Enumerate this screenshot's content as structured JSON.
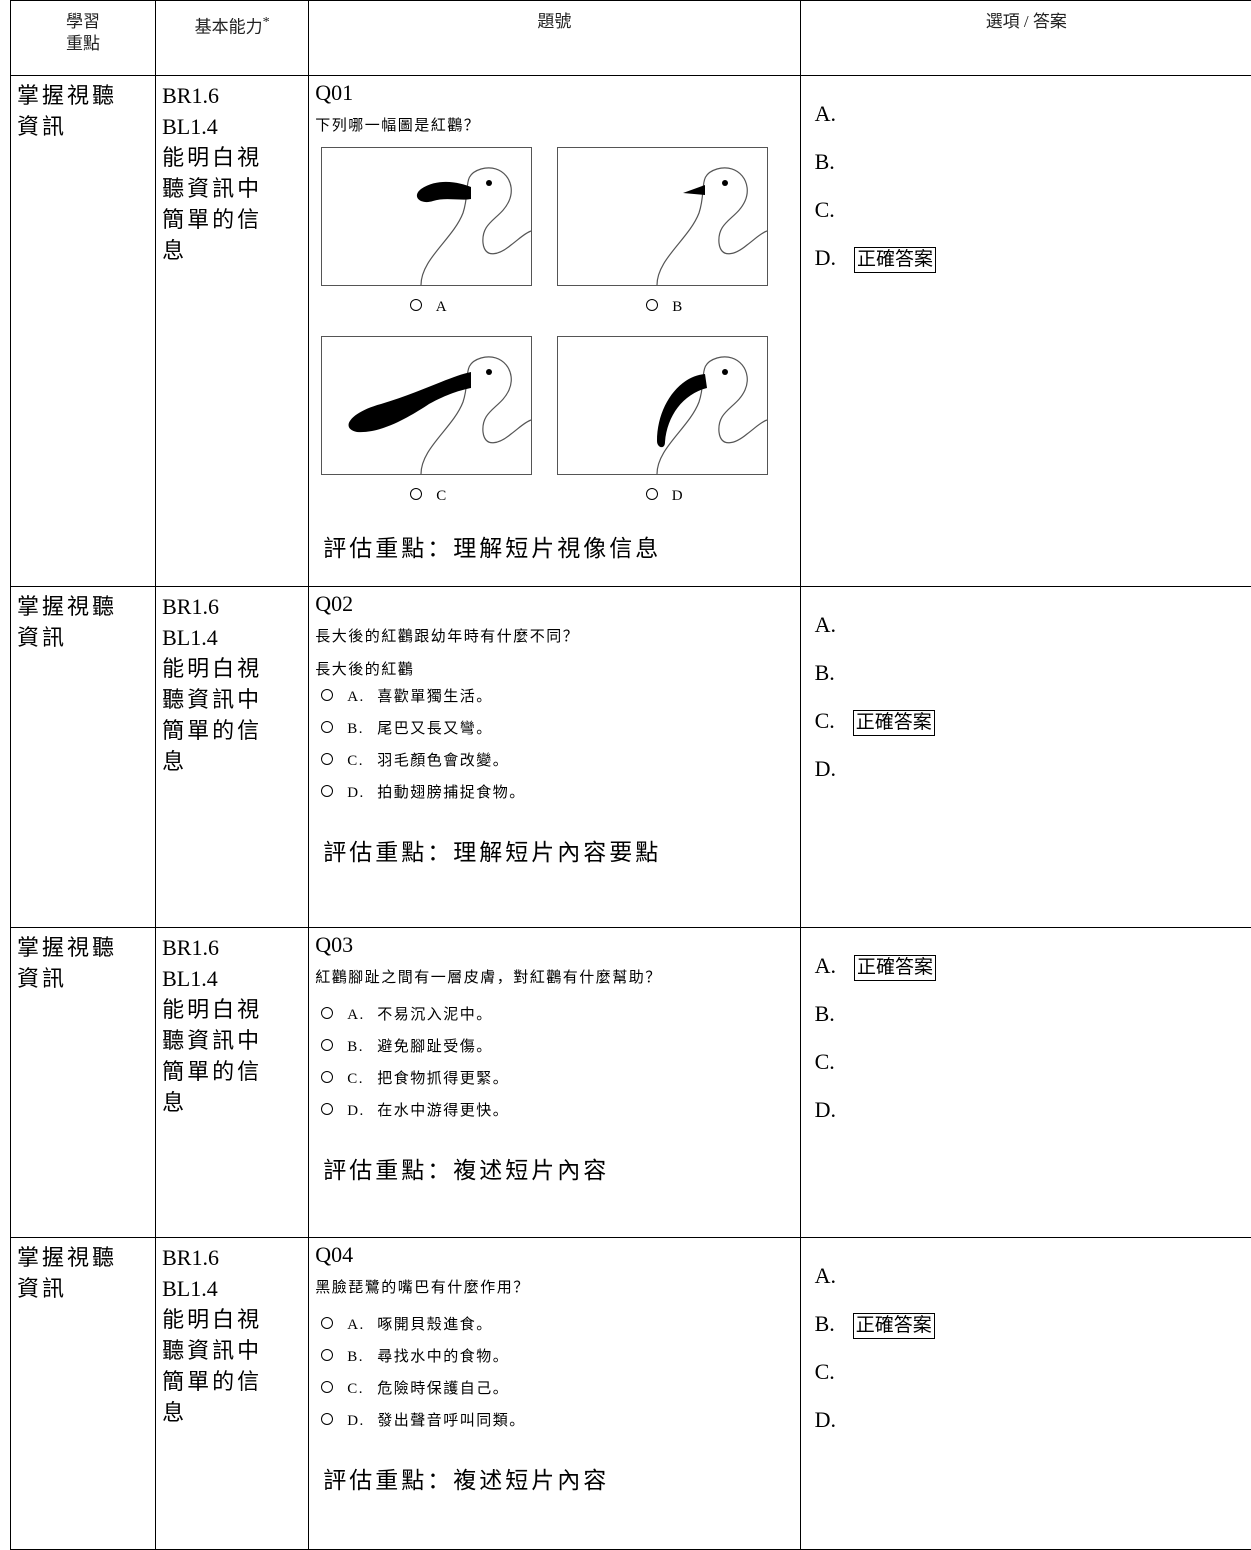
{
  "table": {
    "header": {
      "focus": [
        "學習",
        "重點"
      ],
      "ability": "基本能力",
      "ability_mark": "*",
      "question": "題號",
      "answer": "選項 / 答案"
    },
    "rows": [
      {
        "focus": [
          "掌握視聽",
          "資訊"
        ],
        "codes": [
          "BR1.6",
          "BL1.4"
        ],
        "ability": [
          "能明白視",
          "聽資訊中",
          "簡單的信",
          "息"
        ],
        "qid": "Q01",
        "stem": "下列哪一幅圖是紅鸛？",
        "image_options": [
          "A",
          "B",
          "C",
          "D"
        ],
        "focus_note": "評估重點：理解短片視像信息",
        "choices": [
          "A.",
          "B.",
          "C.",
          "D."
        ],
        "correct": {
          "index": 3,
          "label": "正確答案"
        }
      },
      {
        "focus": [
          "掌握視聽",
          "資訊"
        ],
        "codes": [
          "BR1.6",
          "BL1.4"
        ],
        "ability": [
          "能明白視",
          "聽資訊中",
          "簡單的信",
          "息"
        ],
        "qid": "Q02",
        "stem": "長大後的紅鸛跟幼年時有什麼不同？",
        "lead": "長大後的紅鸛",
        "options": [
          {
            "letter": "A.",
            "text": "喜歡單獨生活。"
          },
          {
            "letter": "B.",
            "text": "尾巴又長又彎。"
          },
          {
            "letter": "C.",
            "text": "羽毛顏色會改變。"
          },
          {
            "letter": "D.",
            "text": "拍動翅膀捕捉食物。"
          }
        ],
        "focus_note": "評估重點：理解短片內容要點",
        "choices": [
          "A.",
          "B.",
          "C.",
          "D."
        ],
        "correct": {
          "index": 2,
          "label": "正確答案"
        }
      },
      {
        "focus": [
          "掌握視聽",
          "資訊"
        ],
        "codes": [
          "BR1.6",
          "BL1.4"
        ],
        "ability": [
          "能明白視",
          "聽資訊中",
          "簡單的信",
          "息"
        ],
        "qid": "Q03",
        "stem": "紅鸛腳趾之間有一層皮膚，對紅鸛有什麼幫助？",
        "options": [
          {
            "letter": "A.",
            "text": "不易沉入泥中。"
          },
          {
            "letter": "B.",
            "text": "避免腳趾受傷。"
          },
          {
            "letter": "C.",
            "text": "把食物抓得更緊。"
          },
          {
            "letter": "D.",
            "text": "在水中游得更快。"
          }
        ],
        "focus_note": "評估重點：複述短片內容",
        "choices": [
          "A.",
          "B.",
          "C.",
          "D."
        ],
        "correct": {
          "index": 0,
          "label": "正確答案"
        }
      },
      {
        "focus": [
          "掌握視聽",
          "資訊"
        ],
        "codes": [
          "BR1.6",
          "BL1.4"
        ],
        "ability": [
          "能明白視",
          "聽資訊中",
          "簡單的信",
          "息"
        ],
        "qid": "Q04",
        "stem": "黑臉琵鷺的嘴巴有什麼作用？",
        "options": [
          {
            "letter": "A.",
            "text": "啄開貝殼進食。"
          },
          {
            "letter": "B.",
            "text": "尋找水中的食物。"
          },
          {
            "letter": "C.",
            "text": "危險時保護自己。"
          },
          {
            "letter": "D.",
            "text": "發出聲音呼叫同類。"
          }
        ],
        "focus_note": "評估重點：複述短片內容",
        "choices": [
          "A.",
          "B.",
          "C.",
          "D."
        ],
        "correct": {
          "index": 1,
          "label": "正確答案"
        }
      }
    ]
  }
}
